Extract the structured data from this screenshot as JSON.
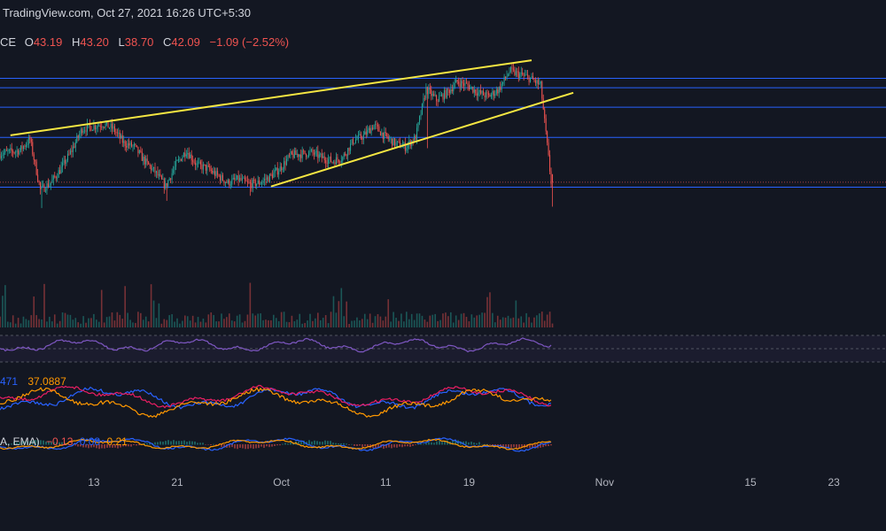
{
  "header": {
    "source_line": "TradingView.com, Oct 27, 2021 16:26 UTC+5:30"
  },
  "ohlc": {
    "symbol_fragment": "CE",
    "open_key": "O",
    "open": "43.19",
    "high_key": "H",
    "high": "43.20",
    "low_key": "L",
    "low": "38.70",
    "close_key": "C",
    "close": "42.09",
    "change": "−1.09 (−2.52%)"
  },
  "indicators": {
    "dmi_values": [
      "471",
      "37.0887"
    ],
    "macd_label": "A, EMA)",
    "macd_values": [
      "−0.13",
      "0.08",
      "0.21"
    ]
  },
  "colors": {
    "background": "#131722",
    "up": "#26a69a",
    "down": "#ef5350",
    "trendline": "#f5e642",
    "level": "#2962ff",
    "rsi": "#7e57c2",
    "dmi_plus": "#2962ff",
    "dmi_minus": "#e91e63",
    "adx": "#ff9800",
    "macd": "#2962ff",
    "signal": "#ff9800"
  },
  "chart_data": {
    "type": "candlestick",
    "x_tick_labels": [
      "13",
      "21",
      "Oct",
      "11",
      "19",
      "Nov",
      "15",
      "23"
    ],
    "x_ticks": [
      "2021-09-13",
      "2021-09-21",
      "2021-10-01",
      "2021-10-11",
      "2021-10-19",
      "2021-11-01",
      "2021-11-15",
      "2021-11-23"
    ],
    "x_range": [
      "2021-09-04",
      "2021-11-28"
    ],
    "y_range": [
      25,
      60
    ],
    "last_bar": {
      "date": "2021-10-27",
      "open": 43.19,
      "high": 43.2,
      "low": 38.7,
      "close": 42.09
    },
    "horizontal_levels": [
      56.5,
      55.2,
      52.5,
      48.3,
      41.4
    ],
    "trendlines": [
      {
        "from": [
          "2021-09-05",
          48.6
        ],
        "to": [
          "2021-10-25",
          59.0
        ]
      },
      {
        "from": [
          "2021-09-30",
          41.5
        ],
        "to": [
          "2021-10-29",
          54.5
        ]
      }
    ],
    "price_path": [
      [
        "2021-09-04",
        46.0
      ],
      [
        "2021-09-06",
        46.5
      ],
      [
        "2021-09-07",
        48.0
      ],
      [
        "2021-09-08",
        41.0
      ],
      [
        "2021-09-09",
        42.0
      ],
      [
        "2021-09-10",
        44.0
      ],
      [
        "2021-09-11",
        46.5
      ],
      [
        "2021-09-12",
        49.5
      ],
      [
        "2021-09-13",
        49.8
      ],
      [
        "2021-09-14",
        50.2
      ],
      [
        "2021-09-15",
        49.5
      ],
      [
        "2021-09-16",
        47.5
      ],
      [
        "2021-09-17",
        47.0
      ],
      [
        "2021-09-18",
        45.0
      ],
      [
        "2021-09-19",
        43.5
      ],
      [
        "2021-09-20",
        41.5
      ],
      [
        "2021-09-21",
        44.5
      ],
      [
        "2021-09-22",
        46.5
      ],
      [
        "2021-09-23",
        44.5
      ],
      [
        "2021-09-24",
        44.0
      ],
      [
        "2021-09-25",
        43.0
      ],
      [
        "2021-09-26",
        42.0
      ],
      [
        "2021-09-27",
        42.5
      ],
      [
        "2021-09-28",
        41.8
      ],
      [
        "2021-09-29",
        42.0
      ],
      [
        "2021-09-30",
        42.8
      ],
      [
        "2021-10-01",
        44.0
      ],
      [
        "2021-10-02",
        45.8
      ],
      [
        "2021-10-03",
        46.0
      ],
      [
        "2021-10-04",
        46.2
      ],
      [
        "2021-10-05",
        45.5
      ],
      [
        "2021-10-06",
        45.0
      ],
      [
        "2021-10-07",
        45.5
      ],
      [
        "2021-10-08",
        47.8
      ],
      [
        "2021-10-09",
        48.5
      ],
      [
        "2021-10-10",
        50.0
      ],
      [
        "2021-10-11",
        48.5
      ],
      [
        "2021-10-12",
        47.5
      ],
      [
        "2021-10-13",
        47.0
      ],
      [
        "2021-10-14",
        48.3
      ],
      [
        "2021-10-15",
        55.0
      ],
      [
        "2021-10-16",
        53.5
      ],
      [
        "2021-10-17",
        54.5
      ],
      [
        "2021-10-18",
        56.0
      ],
      [
        "2021-10-19",
        55.5
      ],
      [
        "2021-10-20",
        54.5
      ],
      [
        "2021-10-21",
        54.0
      ],
      [
        "2021-10-22",
        55.0
      ],
      [
        "2021-10-23",
        57.5
      ],
      [
        "2021-10-24",
        57.0
      ],
      [
        "2021-10-25",
        56.5
      ],
      [
        "2021-10-26",
        55.5
      ],
      [
        "2021-10-27",
        42.09
      ]
    ]
  }
}
